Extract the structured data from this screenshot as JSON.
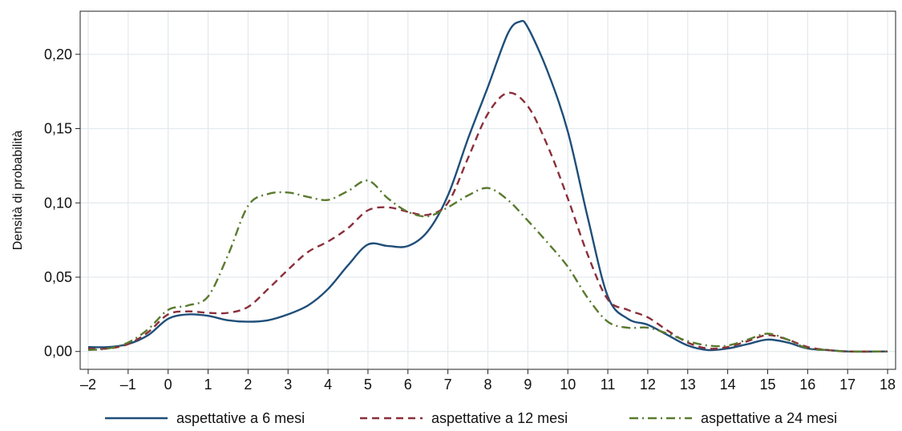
{
  "chart_data": {
    "type": "line",
    "ylabel": "Densità di probabilità",
    "xlabel": "",
    "xlim": [
      -2.2,
      18.2
    ],
    "ylim": [
      -0.012,
      0.229
    ],
    "x_ticks": [
      -2,
      -1,
      0,
      1,
      2,
      3,
      4,
      5,
      6,
      7,
      8,
      9,
      10,
      11,
      12,
      13,
      14,
      15,
      16,
      17,
      18
    ],
    "x_tick_labels": [
      "–2",
      "–1",
      "0",
      "1",
      "2",
      "3",
      "4",
      "5",
      "6",
      "7",
      "8",
      "9",
      "10",
      "11",
      "12",
      "13",
      "14",
      "15",
      "16",
      "17",
      "18"
    ],
    "y_ticks": [
      0,
      0.05,
      0.1,
      0.15,
      0.2
    ],
    "y_tick_labels": [
      "0,00",
      "0,05",
      "0,10",
      "0,15",
      "0,20"
    ],
    "grid": true,
    "legend_position": "bottom",
    "series": [
      {
        "name": "aspettative a 6 mesi",
        "color": "#1f4e79",
        "dash": "solid",
        "points": [
          [
            -2,
            0.003
          ],
          [
            -1.5,
            0.003
          ],
          [
            -1,
            0.005
          ],
          [
            -0.5,
            0.011
          ],
          [
            0,
            0.022
          ],
          [
            0.5,
            0.025
          ],
          [
            1,
            0.024
          ],
          [
            1.5,
            0.021
          ],
          [
            2,
            0.02
          ],
          [
            2.5,
            0.021
          ],
          [
            3,
            0.025
          ],
          [
            3.5,
            0.031
          ],
          [
            4,
            0.042
          ],
          [
            4.5,
            0.058
          ],
          [
            5,
            0.072
          ],
          [
            5.5,
            0.071
          ],
          [
            6,
            0.071
          ],
          [
            6.5,
            0.081
          ],
          [
            7,
            0.105
          ],
          [
            7.5,
            0.143
          ],
          [
            8,
            0.178
          ],
          [
            8.5,
            0.214
          ],
          [
            8.8,
            0.222
          ],
          [
            9,
            0.218
          ],
          [
            9.5,
            0.188
          ],
          [
            10,
            0.148
          ],
          [
            10.5,
            0.09
          ],
          [
            11,
            0.037
          ],
          [
            11.5,
            0.022
          ],
          [
            12,
            0.018
          ],
          [
            12.5,
            0.011
          ],
          [
            13,
            0.004
          ],
          [
            13.5,
            0.001
          ],
          [
            14,
            0.002
          ],
          [
            14.5,
            0.005
          ],
          [
            15,
            0.008
          ],
          [
            15.5,
            0.006
          ],
          [
            16,
            0.002
          ],
          [
            16.5,
            0.001
          ],
          [
            17,
            0
          ],
          [
            18,
            0
          ]
        ]
      },
      {
        "name": "aspettative a 12 mesi",
        "color": "#8b2e3a",
        "dash": "dashed",
        "points": [
          [
            -2,
            0.002
          ],
          [
            -1.5,
            0.002
          ],
          [
            -1,
            0.005
          ],
          [
            -0.5,
            0.013
          ],
          [
            0,
            0.025
          ],
          [
            0.5,
            0.027
          ],
          [
            1,
            0.026
          ],
          [
            1.5,
            0.026
          ],
          [
            2,
            0.03
          ],
          [
            2.5,
            0.042
          ],
          [
            3,
            0.055
          ],
          [
            3.5,
            0.067
          ],
          [
            4,
            0.074
          ],
          [
            4.5,
            0.083
          ],
          [
            5,
            0.095
          ],
          [
            5.5,
            0.097
          ],
          [
            6,
            0.094
          ],
          [
            6.5,
            0.092
          ],
          [
            7,
            0.1
          ],
          [
            7.5,
            0.13
          ],
          [
            8,
            0.16
          ],
          [
            8.5,
            0.174
          ],
          [
            9,
            0.165
          ],
          [
            9.5,
            0.138
          ],
          [
            10,
            0.103
          ],
          [
            10.5,
            0.065
          ],
          [
            11,
            0.035
          ],
          [
            11.5,
            0.028
          ],
          [
            12,
            0.023
          ],
          [
            12.5,
            0.014
          ],
          [
            13,
            0.006
          ],
          [
            13.5,
            0.002
          ],
          [
            14,
            0.003
          ],
          [
            14.5,
            0.007
          ],
          [
            15,
            0.011
          ],
          [
            15.5,
            0.008
          ],
          [
            16,
            0.003
          ],
          [
            16.5,
            0.001
          ],
          [
            17,
            0
          ],
          [
            18,
            0
          ]
        ]
      },
      {
        "name": "aspettative a 24 mesi",
        "color": "#5a7a2e",
        "dash": "dashdot",
        "points": [
          [
            -2,
            0.001
          ],
          [
            -1.5,
            0.002
          ],
          [
            -1,
            0.006
          ],
          [
            -0.5,
            0.015
          ],
          [
            0,
            0.028
          ],
          [
            0.5,
            0.031
          ],
          [
            1,
            0.037
          ],
          [
            1.5,
            0.065
          ],
          [
            2,
            0.098
          ],
          [
            2.5,
            0.106
          ],
          [
            3,
            0.107
          ],
          [
            3.5,
            0.104
          ],
          [
            4,
            0.102
          ],
          [
            4.5,
            0.108
          ],
          [
            5,
            0.115
          ],
          [
            5.5,
            0.103
          ],
          [
            6,
            0.094
          ],
          [
            6.5,
            0.091
          ],
          [
            7,
            0.097
          ],
          [
            7.5,
            0.105
          ],
          [
            8,
            0.11
          ],
          [
            8.5,
            0.102
          ],
          [
            9,
            0.088
          ],
          [
            9.5,
            0.073
          ],
          [
            10,
            0.057
          ],
          [
            10.5,
            0.036
          ],
          [
            11,
            0.02
          ],
          [
            11.5,
            0.016
          ],
          [
            12,
            0.016
          ],
          [
            12.5,
            0.012
          ],
          [
            13,
            0.007
          ],
          [
            13.5,
            0.004
          ],
          [
            14,
            0.004
          ],
          [
            14.5,
            0.008
          ],
          [
            15,
            0.012
          ],
          [
            15.5,
            0.008
          ],
          [
            16,
            0.002
          ],
          [
            16.5,
            0.001
          ],
          [
            17,
            0
          ],
          [
            18,
            0
          ]
        ]
      }
    ]
  }
}
